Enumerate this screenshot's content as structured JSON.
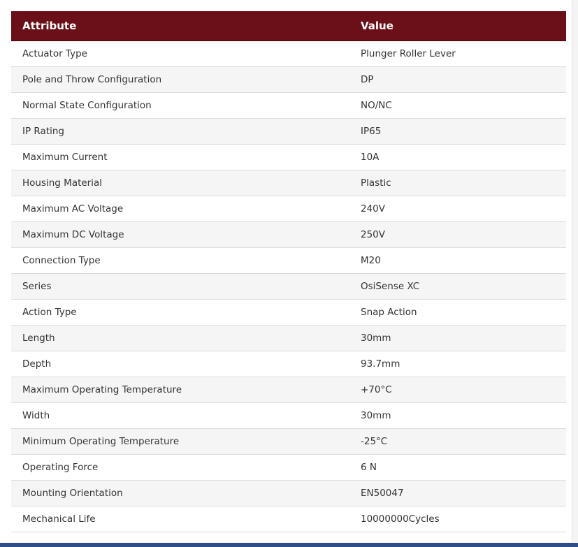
{
  "table": {
    "headers": {
      "attribute": "Attribute",
      "value": "Value"
    },
    "rows": [
      {
        "attribute": "Actuator Type",
        "value": "Plunger Roller Lever"
      },
      {
        "attribute": "Pole and Throw Configuration",
        "value": "DP"
      },
      {
        "attribute": "Normal State Configuration",
        "value": "NO/NC"
      },
      {
        "attribute": "IP Rating",
        "value": "IP65"
      },
      {
        "attribute": "Maximum Current",
        "value": "10A"
      },
      {
        "attribute": "Housing Material",
        "value": "Plastic"
      },
      {
        "attribute": "Maximum AC Voltage",
        "value": "240V"
      },
      {
        "attribute": "Maximum DC Voltage",
        "value": "250V"
      },
      {
        "attribute": "Connection Type",
        "value": "M20"
      },
      {
        "attribute": "Series",
        "value": "OsiSense XC"
      },
      {
        "attribute": "Action Type",
        "value": "Snap Action"
      },
      {
        "attribute": "Length",
        "value": "30mm"
      },
      {
        "attribute": "Depth",
        "value": "93.7mm"
      },
      {
        "attribute": "Maximum Operating Temperature",
        "value": "+70°C"
      },
      {
        "attribute": "Width",
        "value": "30mm"
      },
      {
        "attribute": "Minimum Operating Temperature",
        "value": "-25°C"
      },
      {
        "attribute": "Operating Force",
        "value": "6 N"
      },
      {
        "attribute": "Mounting Orientation",
        "value": "EN50047"
      },
      {
        "attribute": "Mechanical Life",
        "value": "10000000Cycles"
      }
    ]
  },
  "colors": {
    "header_background": "#6b1019",
    "header_text": "#ffffff",
    "row_alt_background": "#f5f5f5",
    "row_border": "#dcdcdc",
    "bottom_bar": "#2f4d86"
  }
}
